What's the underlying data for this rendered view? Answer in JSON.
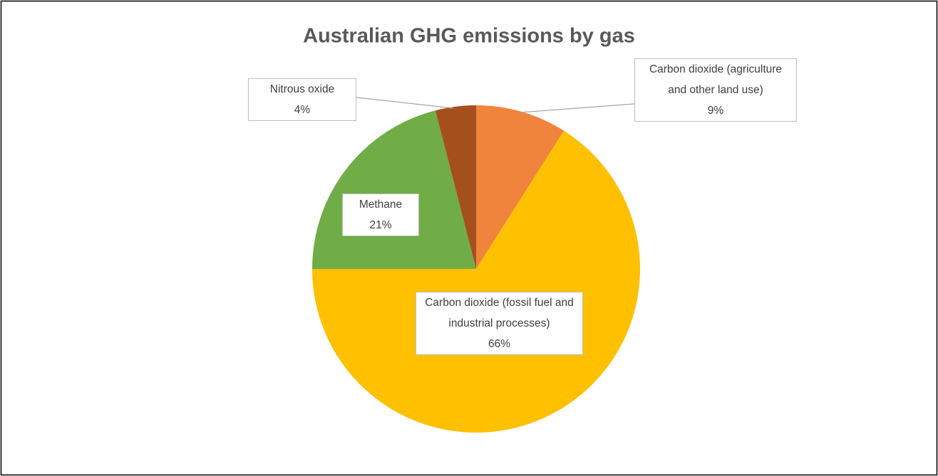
{
  "chart_data": {
    "type": "pie",
    "title": "Australian GHG emissions by gas",
    "categories": [
      "Carbon dioxide (agriculture and other land use)",
      "Carbon dioxide (fossil fuel and industrial processes)",
      "Methane",
      "Nitrous oxide"
    ],
    "values": [
      9,
      66,
      21,
      4
    ],
    "value_labels": [
      "9%",
      "66%",
      "21%",
      "4%"
    ],
    "colors": [
      "#f0843c",
      "#ffc000",
      "#70ad47",
      "#a5501c"
    ]
  }
}
